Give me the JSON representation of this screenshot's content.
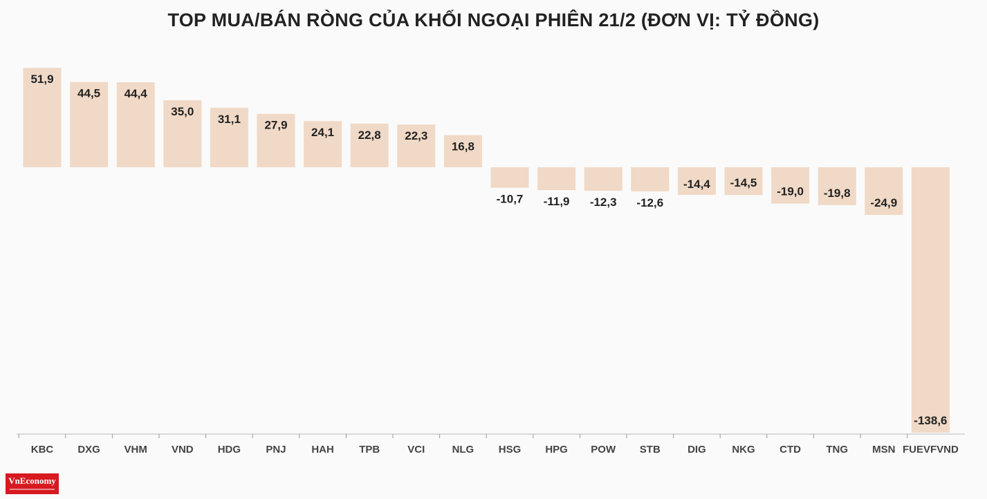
{
  "title": "TOP MUA/BÁN RÒNG CỦA KHỐI NGOẠI PHIÊN 21/2 (ĐƠN VỊ: TỶ ĐỒNG)",
  "logo": {
    "text": "VnEconomy"
  },
  "colors": {
    "bar": "#f0d9c6",
    "text": "#222222",
    "axis_text": "#444444",
    "logo_bg": "#d71920"
  },
  "chart_data": {
    "type": "bar",
    "title": "TOP MUA/BÁN RÒNG CỦA KHỐI NGOẠI PHIÊN 21/2 (ĐƠN VỊ: TỶ ĐỒNG)",
    "xlabel": "",
    "ylabel": "",
    "categories": [
      "KBC",
      "DXG",
      "VHM",
      "VND",
      "HDG",
      "PNJ",
      "HAH",
      "TPB",
      "VCI",
      "NLG",
      "HSG",
      "HPG",
      "POW",
      "STB",
      "DIG",
      "NKG",
      "CTD",
      "TNG",
      "MSN",
      "FUEVFVND"
    ],
    "values": [
      51.9,
      44.5,
      44.4,
      35.0,
      31.1,
      27.9,
      24.1,
      22.8,
      22.3,
      16.8,
      -10.7,
      -11.9,
      -12.3,
      -12.6,
      -14.4,
      -14.5,
      -19.0,
      -19.8,
      -24.9,
      -138.6
    ],
    "labels": [
      "51,9",
      "44,5",
      "44,4",
      "35,0",
      "31,1",
      "27,9",
      "24,1",
      "22,8",
      "22,3",
      "16,8",
      "-10,7",
      "-11,9",
      "-12,3",
      "-12,6",
      "-14,4",
      "-14,5",
      "-19,0",
      "-19,8",
      "-24,9",
      "-138,6"
    ],
    "ylim": [
      -138.6,
      51.9
    ],
    "grid": false,
    "legend": "none"
  }
}
